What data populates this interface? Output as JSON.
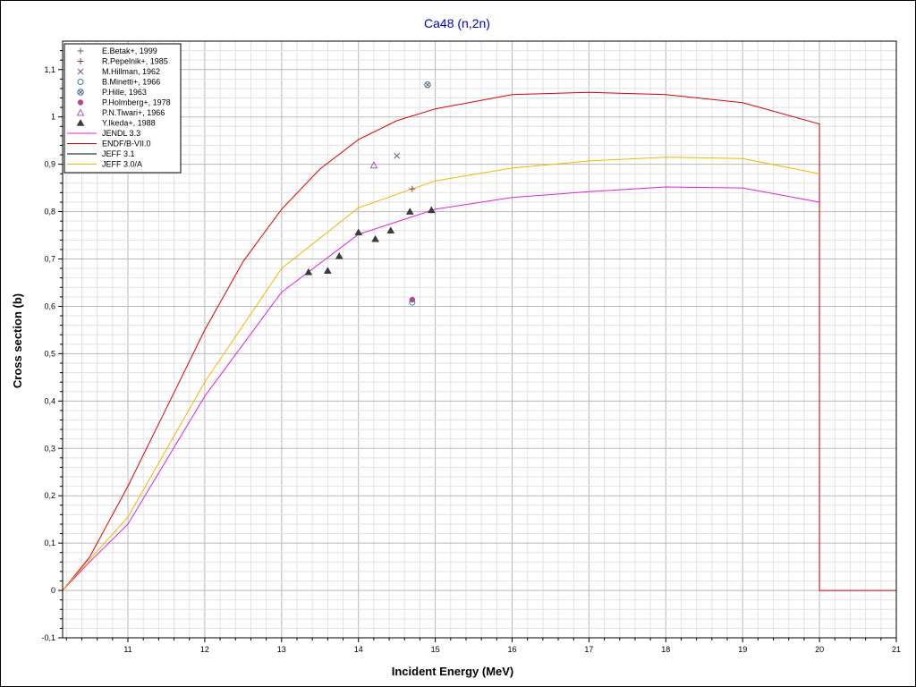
{
  "chart_data": {
    "type": "line",
    "title": "Ca48 (n,2n)",
    "xlabel": "Incident Energy (MeV)",
    "ylabel": "Cross section (b)",
    "xlim": [
      10.15,
      21
    ],
    "ylim": [
      -0.1,
      1.16
    ],
    "grid": true,
    "legend_position": "top-left",
    "xticks": [
      {
        "value": 11,
        "label": "11"
      },
      {
        "value": 12,
        "label": "12"
      },
      {
        "value": 13,
        "label": "13"
      },
      {
        "value": 14,
        "label": "14"
      },
      {
        "value": 15,
        "label": "15"
      },
      {
        "value": 16,
        "label": "16"
      },
      {
        "value": 17,
        "label": "17"
      },
      {
        "value": 18,
        "label": "18"
      },
      {
        "value": 19,
        "label": "19"
      },
      {
        "value": 20,
        "label": "20"
      },
      {
        "value": 21,
        "label": "21"
      }
    ],
    "yticks": [
      {
        "value": -0.1,
        "label": "-0,1"
      },
      {
        "value": 0,
        "label": "0"
      },
      {
        "value": 0.1,
        "label": "0,1"
      },
      {
        "value": 0.2,
        "label": "0,2"
      },
      {
        "value": 0.3,
        "label": "0,3"
      },
      {
        "value": 0.4,
        "label": "0,4"
      },
      {
        "value": 0.5,
        "label": "0,5"
      },
      {
        "value": 0.6,
        "label": "0,6"
      },
      {
        "value": 0.7,
        "label": "0,7"
      },
      {
        "value": 0.8,
        "label": "0,8"
      },
      {
        "value": 0.9,
        "label": "0,9"
      },
      {
        "value": 1,
        "label": "1"
      },
      {
        "value": 1.1,
        "label": "1,1"
      }
    ],
    "scatter_series": [
      {
        "name": "E.Betak+, 1999",
        "marker": "plus",
        "color": "#7a5a5a",
        "points": []
      },
      {
        "name": "R.Pepelnik+, 1985",
        "marker": "plus",
        "color": "#8b3a3a",
        "points": [
          [
            14.7,
            0.848
          ]
        ]
      },
      {
        "name": "M.Hillman, 1962",
        "marker": "x",
        "color": "#6a5a8a",
        "points": [
          [
            14.5,
            0.918
          ]
        ]
      },
      {
        "name": "B.Minetti+, 1966",
        "marker": "circle-open",
        "color": "#3a7ab0",
        "points": [
          [
            14.7,
            0.608
          ]
        ]
      },
      {
        "name": "P.Hille, 1963",
        "marker": "circle-x",
        "color": "#4a6a8a",
        "points": [
          [
            14.9,
            1.068
          ]
        ]
      },
      {
        "name": "P.Holmberg+, 1978",
        "marker": "circle-filled",
        "color": "#b04a8a",
        "points": [
          [
            14.7,
            0.614
          ]
        ]
      },
      {
        "name": "P.N.Tiwari+, 1966",
        "marker": "triangle-open",
        "color": "#a05ab0",
        "points": [
          [
            14.2,
            0.898
          ]
        ]
      },
      {
        "name": "Y.Ikeda+, 1988",
        "marker": "triangle-filled",
        "color": "#3c3c3c",
        "points": [
          [
            13.35,
            0.672
          ],
          [
            13.6,
            0.675
          ],
          [
            13.75,
            0.706
          ],
          [
            14.0,
            0.756
          ],
          [
            14.22,
            0.742
          ],
          [
            14.42,
            0.76
          ],
          [
            14.67,
            0.8
          ],
          [
            14.95,
            0.803
          ]
        ]
      }
    ],
    "series": [
      {
        "name": "JENDL 3.3",
        "color": "#e020e0",
        "x": [
          10.15,
          10.5,
          11,
          12,
          13,
          14,
          15,
          16,
          17,
          18,
          19,
          20
        ],
        "y": [
          0,
          0.06,
          0.14,
          0.41,
          0.63,
          0.752,
          0.805,
          0.83,
          0.842,
          0.852,
          0.85,
          0.82
        ]
      },
      {
        "name": "ENDF/B-VII.0",
        "color": "#e00000",
        "x": [
          10.15,
          10.5,
          11,
          11.5,
          12,
          12.5,
          13,
          13.5,
          14,
          14.5,
          15,
          16,
          17,
          18,
          19,
          20,
          20,
          21
        ],
        "y": [
          0,
          0.07,
          0.22,
          0.385,
          0.55,
          0.695,
          0.805,
          0.89,
          0.952,
          0.992,
          1.017,
          1.047,
          1.052,
          1.047,
          1.03,
          0.985,
          0,
          0
        ]
      },
      {
        "name": "JEFF 3.1",
        "color": "#000000",
        "x": [],
        "y": []
      },
      {
        "name": "JEFF 3.0/A",
        "color": "#f0b800",
        "x": [
          10.15,
          10.5,
          11,
          12,
          13,
          14,
          15,
          16,
          17,
          18,
          19,
          20
        ],
        "y": [
          0,
          0.065,
          0.155,
          0.44,
          0.68,
          0.808,
          0.865,
          0.892,
          0.907,
          0.915,
          0.912,
          0.88
        ]
      }
    ]
  }
}
